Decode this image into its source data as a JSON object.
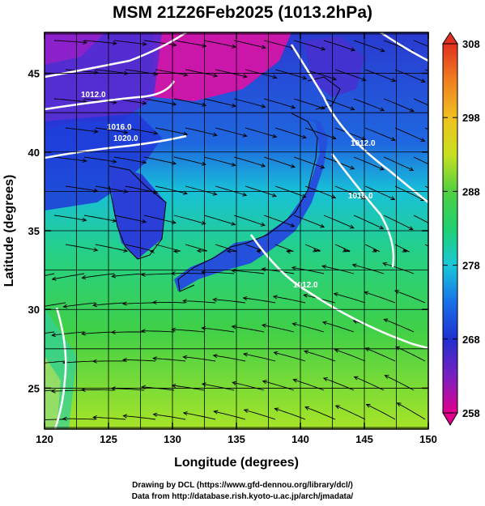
{
  "title": "MSM 21Z26Feb2025 (1013.2hPa)",
  "x_axis": {
    "label": "Longitude (degrees)",
    "range": [
      120,
      150
    ],
    "ticks": [
      "120",
      "125",
      "130",
      "135",
      "140",
      "145",
      "150"
    ]
  },
  "y_axis": {
    "label": "Latitude  (degrees)",
    "range": [
      22.4,
      47.6
    ],
    "ticks": [
      "25",
      "30",
      "35",
      "40",
      "45"
    ]
  },
  "colorbar": {
    "range": [
      258,
      308
    ],
    "ticks": [
      "258",
      "268",
      "278",
      "288",
      "298",
      "308"
    ],
    "colors": [
      "#e0008c",
      "#7a1fc0",
      "#2030d0",
      "#1870e8",
      "#18c8d8",
      "#20d070",
      "#50d040",
      "#c8e020",
      "#f0c020",
      "#f08020",
      "#e03020"
    ]
  },
  "isobars": {
    "color": "#ffffff",
    "labels": [
      "1012.0",
      "1016.0",
      "1020.0",
      "1012.0",
      "1016.0",
      "1012.0"
    ]
  },
  "credits": {
    "line1": "Drawing by DCL (https://www.gfd-dennou.org/library/dcl/)",
    "line2": "Data from http://database.rish.kyoto-u.ac.jp/arch/jmadata/"
  }
}
